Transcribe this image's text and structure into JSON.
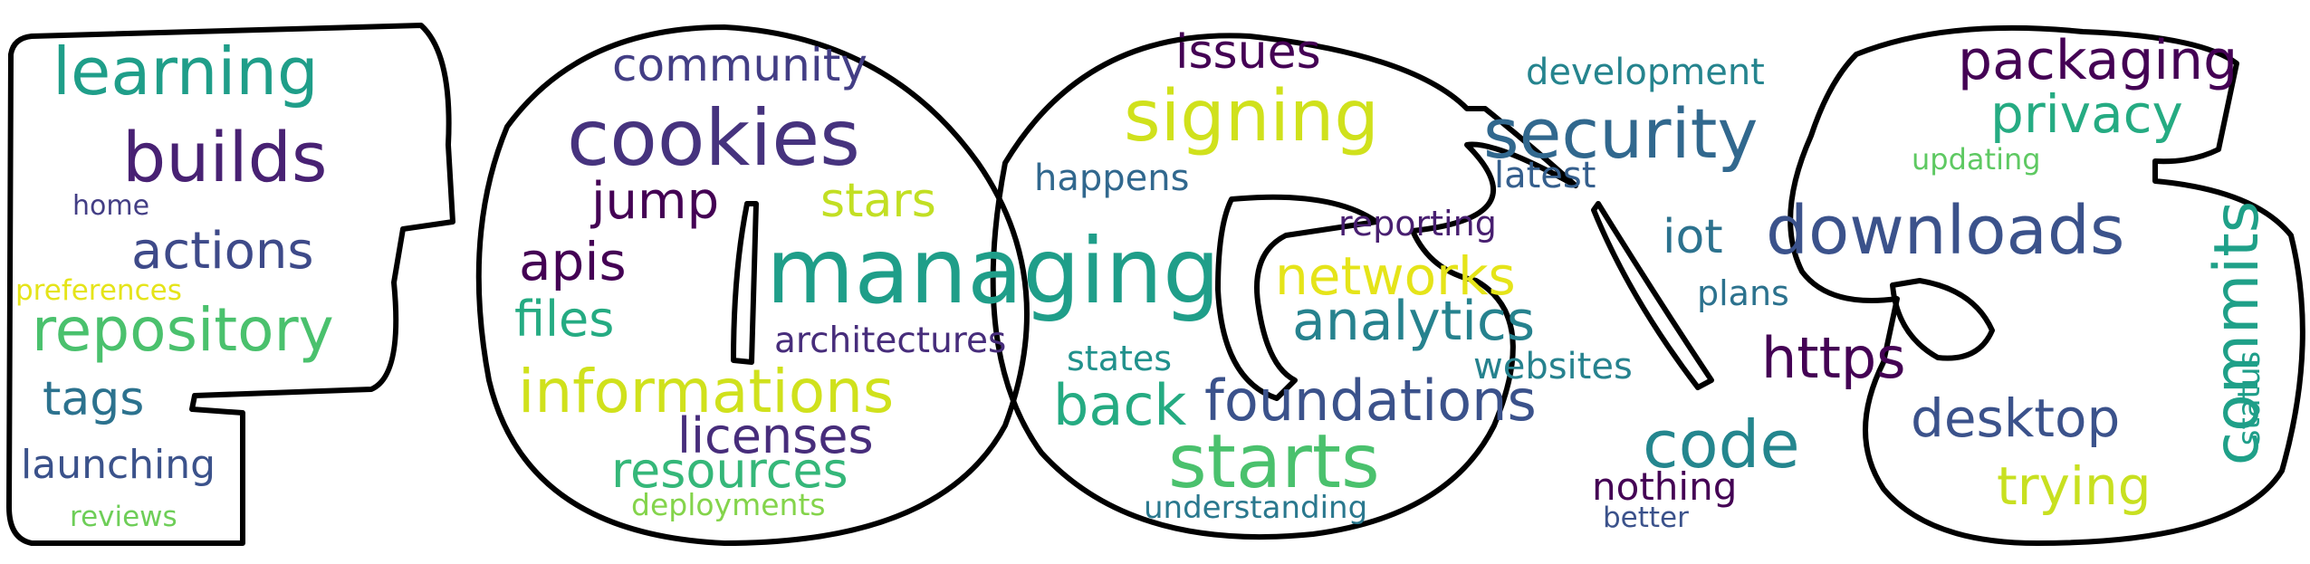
{
  "words": {
    "learning": {
      "text": "learning",
      "color": "#1f9e89"
    },
    "builds": {
      "text": "builds",
      "color": "#482173"
    },
    "home": {
      "text": "home",
      "color": "#433e85"
    },
    "actions": {
      "text": "actions",
      "color": "#3e4a89"
    },
    "preferences": {
      "text": "preferences",
      "color": "#e5e419"
    },
    "repository": {
      "text": "repository",
      "color": "#4ac16d"
    },
    "tags": {
      "text": "tags",
      "color": "#2c728e"
    },
    "launching": {
      "text": "launching",
      "color": "#3b528b"
    },
    "reviews": {
      "text": "reviews",
      "color": "#6ece58"
    },
    "community": {
      "text": "community",
      "color": "#433e85"
    },
    "cookies": {
      "text": "cookies",
      "color": "#46337e"
    },
    "jump": {
      "text": "jump",
      "color": "#440154"
    },
    "stars": {
      "text": "stars",
      "color": "#c2df23"
    },
    "apis": {
      "text": "apis",
      "color": "#440154"
    },
    "files": {
      "text": "files",
      "color": "#25ab82"
    },
    "managing": {
      "text": "managing",
      "color": "#1f9e89"
    },
    "architectures": {
      "text": "architectures",
      "color": "#472d7b"
    },
    "informations": {
      "text": "informations",
      "color": "#d0e11c"
    },
    "licenses": {
      "text": "licenses",
      "color": "#472d7b"
    },
    "resources": {
      "text": "resources",
      "color": "#35b779"
    },
    "deployments": {
      "text": "deployments",
      "color": "#84d44b"
    },
    "issues": {
      "text": "issues",
      "color": "#440154"
    },
    "signing": {
      "text": "signing",
      "color": "#d0e11c"
    },
    "happens": {
      "text": "happens",
      "color": "#31688e"
    },
    "reporting": {
      "text": "reporting",
      "color": "#481f70"
    },
    "networks": {
      "text": "networks",
      "color": "#e5e419"
    },
    "analytics": {
      "text": "analytics",
      "color": "#26828e"
    },
    "states": {
      "text": "states",
      "color": "#21918c"
    },
    "back": {
      "text": "back",
      "color": "#25ab82"
    },
    "foundations": {
      "text": "foundations",
      "color": "#3b528b"
    },
    "starts": {
      "text": "starts",
      "color": "#4ac16d"
    },
    "understanding": {
      "text": "understanding",
      "color": "#2a788e"
    },
    "development": {
      "text": "development",
      "color": "#25848e"
    },
    "security": {
      "text": "security",
      "color": "#31688e"
    },
    "latest": {
      "text": "latest",
      "color": "#355f8d"
    },
    "iot": {
      "text": "iot",
      "color": "#2c728e"
    },
    "websites": {
      "text": "websites",
      "color": "#26828e"
    },
    "code": {
      "text": "code",
      "color": "#24868e"
    },
    "nothing": {
      "text": "nothing",
      "color": "#440154"
    },
    "better": {
      "text": "better",
      "color": "#3b528b"
    },
    "packaging": {
      "text": "packaging",
      "color": "#440154"
    },
    "privacy": {
      "text": "privacy",
      "color": "#25ab82"
    },
    "updating": {
      "text": "updating",
      "color": "#5ec962"
    },
    "downloads": {
      "text": "downloads",
      "color": "#3b528b"
    },
    "plans": {
      "text": "plans",
      "color": "#2c728e"
    },
    "https": {
      "text": "https",
      "color": "#440154"
    },
    "commits": {
      "text": "commits",
      "color": "#1fa088"
    },
    "status": {
      "text": "status",
      "color": "#1f9e89"
    },
    "desktop": {
      "text": "desktop",
      "color": "#3b528b"
    },
    "trying": {
      "text": "trying",
      "color": "#c8e020"
    }
  }
}
